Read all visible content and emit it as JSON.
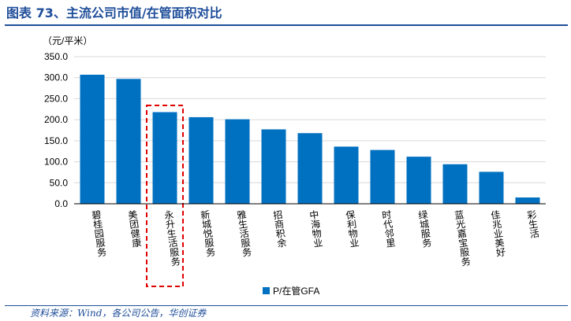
{
  "title": "图表 73、主流公司市值/在管面积对比",
  "source": "资料来源：Wind，各公司公告，华创证券",
  "colors": {
    "bar": "#0070c0",
    "highlight": "#e00000",
    "brand": "#1f4e9a"
  },
  "chart_data": {
    "type": "bar",
    "ylabel": "（元/平米）",
    "ylim": [
      0,
      350
    ],
    "yticks": [
      "0.0",
      "50.0",
      "100.0",
      "150.0",
      "200.0",
      "250.0",
      "300.0",
      "350.0"
    ],
    "categories": [
      "碧桂园服务",
      "美团健康",
      "永升生活服务",
      "新城悦服务",
      "雅生活服务",
      "招商积余",
      "中海物业",
      "保利物业",
      "时代邻里",
      "绿城服务",
      "蓝光嘉宝服务",
      "佳兆业美好",
      "彩生活"
    ],
    "series": [
      {
        "name": "P/在管GFA",
        "values": [
          307,
          297,
          218,
          206,
          201,
          177,
          168,
          136,
          128,
          112,
          94,
          76,
          15
        ]
      }
    ],
    "highlight_category": "永升生活服务",
    "legend": [
      "P/在管GFA"
    ]
  }
}
